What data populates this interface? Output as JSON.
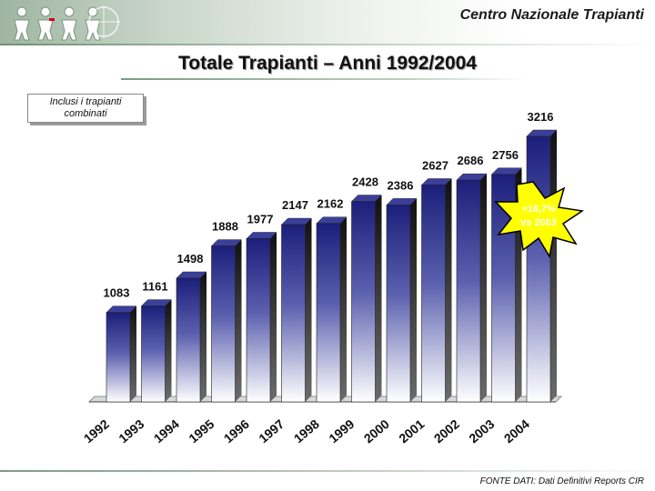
{
  "header": {
    "org_name": "Centro Nazionale Trapianti",
    "logo_icon": "people-logo-icon"
  },
  "slide_title": "Totale Trapianti – Anni 1992/2004",
  "note": [
    "Inclusi i trapianti",
    "combinati"
  ],
  "callout": {
    "line1": "+16,7%",
    "line2": "vs 2003"
  },
  "source": "FONTE DATI: Dati Definitivi Reports CIR",
  "colors": {
    "bar_dark": "#1c1f7a",
    "bar_light": "#ffffff",
    "callout_fill": "#ffff00",
    "callout_stroke": "#000000"
  },
  "chart_data": {
    "type": "bar",
    "title": "Totale Trapianti – Anni 1992/2004",
    "categories": [
      "1992",
      "1993",
      "1994",
      "1995",
      "1996",
      "1997",
      "1998",
      "1999",
      "2000",
      "2001",
      "2002",
      "2003",
      "2004"
    ],
    "values": [
      1083,
      1161,
      1498,
      1888,
      1977,
      2147,
      2162,
      2428,
      2386,
      2627,
      2686,
      2756,
      3216
    ],
    "value_labels": [
      "1083",
      "1161",
      "1498",
      "1888",
      "1977",
      "2147",
      "2162",
      "2428",
      "2386",
      "2627",
      "2686",
      "2756",
      "3216"
    ],
    "ylim": [
      0,
      3216
    ],
    "xlabel": "",
    "ylabel": "",
    "grid": false,
    "legend": "none"
  }
}
